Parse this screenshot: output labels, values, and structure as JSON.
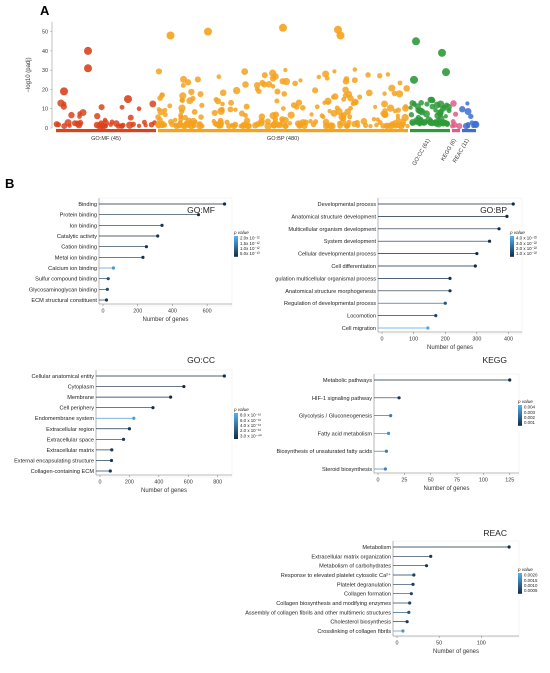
{
  "panels": {
    "a": "A",
    "b": "B"
  },
  "chart_data": [
    {
      "type": "scatter",
      "id": "manhattan",
      "ylabel": "−log10 (padj)",
      "ylim": [
        0,
        55
      ],
      "yticks": [
        "0",
        "10",
        "20",
        "30",
        "40",
        "50"
      ],
      "sources": [
        {
          "name": "GO:MF (45)",
          "color": "#d9431c",
          "count": 45
        },
        {
          "name": "GO:BP (480)",
          "color": "#f5a21e",
          "count": 480
        },
        {
          "name": "GO:CC (61)",
          "color": "#2e9a3a",
          "count": 61
        },
        {
          "name": "KEGG (6)",
          "color": "#e05a8a",
          "count": 6
        },
        {
          "name": "REAC (11)",
          "color": "#3c6fcf",
          "count": 11
        }
      ],
      "highlights": [
        {
          "source": 0,
          "pos": 0.08,
          "y": 19
        },
        {
          "source": 0,
          "pos": 0.32,
          "y": 40
        },
        {
          "source": 0,
          "pos": 0.32,
          "y": 31
        },
        {
          "source": 0,
          "pos": 0.72,
          "y": 15
        },
        {
          "source": 1,
          "pos": 0.05,
          "y": 48
        },
        {
          "source": 1,
          "pos": 0.2,
          "y": 50
        },
        {
          "source": 1,
          "pos": 0.5,
          "y": 52
        },
        {
          "source": 1,
          "pos": 0.72,
          "y": 51
        },
        {
          "source": 1,
          "pos": 0.73,
          "y": 48
        },
        {
          "source": 2,
          "pos": 0.15,
          "y": 45
        },
        {
          "source": 2,
          "pos": 0.8,
          "y": 39
        },
        {
          "source": 2,
          "pos": 0.1,
          "y": 25
        },
        {
          "source": 2,
          "pos": 0.9,
          "y": 29
        }
      ]
    },
    {
      "type": "lollipop",
      "id": "gomf",
      "title": "GO:MF",
      "xlabel": "Number of genes",
      "xlim": [
        0,
        720
      ],
      "xticks": [
        0,
        200,
        400,
        600
      ],
      "legend": {
        "title": "p value",
        "labels": [
          "2.0x 10⁻¹²",
          "1.5x 10⁻¹²",
          "1.0x 10⁻¹²",
          "5.0x 10⁻¹³"
        ]
      },
      "categories": [
        "Binding",
        "Protein binding",
        "Ion binding",
        "Catalytic activity",
        "Cation binding",
        "Metal ion binding",
        "Calcium ion binding",
        "Sulfur compound binding",
        "Glycosaminoglycan binding",
        "ECM structural constituent"
      ],
      "values": [
        700,
        550,
        340,
        315,
        250,
        230,
        60,
        30,
        25,
        20
      ],
      "shade": [
        0,
        0.05,
        0.05,
        0.05,
        0.05,
        0.05,
        0.8,
        0.25,
        0.25,
        0.1
      ]
    },
    {
      "type": "lollipop",
      "id": "gobp",
      "title": "GO:BP",
      "xlabel": "Number of genes",
      "xlim": [
        0,
        430
      ],
      "xticks": [
        0,
        100,
        200,
        300,
        400
      ],
      "legend": {
        "title": "p value",
        "labels": [
          "4.0 x 10⁻²²",
          "3.0 x 10⁻²²",
          "2.0 x 10⁻²²",
          "1.0 x 10⁻²²"
        ]
      },
      "categories": [
        "Developmental process",
        "Anatomical structure development",
        "Multicellular organism development",
        "System development",
        "Cellular developmental process",
        "Cell differentiation",
        "gulation multicellular organismal process",
        "Anatomical structure morphogenesis",
        "Regulation of developmental process",
        "Locomotion",
        "Cell migration"
      ],
      "values": [
        415,
        395,
        370,
        340,
        300,
        295,
        215,
        215,
        200,
        170,
        145
      ],
      "shade": [
        0,
        0,
        0,
        0,
        0,
        0,
        0.05,
        0.05,
        0.3,
        0.2,
        0.9
      ]
    },
    {
      "type": "lollipop",
      "id": "gocc",
      "title": "GO:CC",
      "xlabel": "Number of genes",
      "xlim": [
        0,
        870
      ],
      "xticks": [
        0,
        200,
        400,
        600,
        800
      ],
      "legend": {
        "title": "p value",
        "labels": [
          "8.0 x 10⁻¹⁶",
          "6.0 x 10⁻¹⁶",
          "4.0 x 10⁻¹⁶",
          "2.0 x 10⁻¹⁶",
          "3.0 x 10⁻⁴⁰"
        ]
      },
      "categories": [
        "Cellular anatomical entity",
        "Cytoplasm",
        "Membrane",
        "Cell periphery",
        "Endomembrane system",
        "Extracellular region",
        "Extracellular space",
        "Extracellular matrix",
        "External encapsulating structure",
        "Collagen-containing  ECM"
      ],
      "values": [
        845,
        570,
        480,
        360,
        230,
        200,
        160,
        80,
        78,
        70
      ],
      "shade": [
        0,
        0,
        0,
        0,
        0.85,
        0.1,
        0.1,
        0.1,
        0.1,
        0.1
      ]
    },
    {
      "type": "lollipop",
      "id": "kegg",
      "title": "KEGG",
      "xlabel": "Number of genes",
      "xlim": [
        0,
        130
      ],
      "xticks": [
        0,
        25,
        50,
        75,
        100,
        125
      ],
      "legend": {
        "title": "p value",
        "labels": [
          "0.004",
          "0.003",
          "0.002",
          "0.001"
        ]
      },
      "categories": [
        "Metabolic pathways",
        "HIF-1 signaling pathway",
        "Glycolysis / Gluconeogenesis",
        "Fatty acid metabolism",
        "Biosynthesis of unsaturated fatty acids",
        "Steroid biosynthesis"
      ],
      "values": [
        125,
        20,
        12,
        10,
        8,
        7
      ],
      "shade": [
        0,
        0.1,
        0.6,
        0.75,
        0.6,
        0.65
      ]
    },
    {
      "type": "lollipop",
      "id": "reac",
      "title": "REAC",
      "xlabel": "Number of genes",
      "xlim": [
        0,
        140
      ],
      "xticks": [
        0,
        50,
        100
      ],
      "legend": {
        "title": "p value",
        "labels": [
          "0.0020",
          "0.0015",
          "0.0010",
          "0.0005"
        ]
      },
      "categories": [
        "Metabolism",
        "Extracellular matrix organization",
        "Metabolism of carbohydrates",
        "Response to elevated platelet cytosolic Ca²⁺",
        "Platelet degranulation",
        "Collagen formation",
        "Collagen biosynthesis and modifying enzymes",
        "Assembly of collagen fibrils and other multimeric structures",
        "Cholesterol biosynthesis",
        "Crosslinking of collagen fibrils"
      ],
      "values": [
        133,
        40,
        35,
        20,
        19,
        17,
        15,
        14,
        12,
        7
      ],
      "shade": [
        0,
        0.1,
        0.1,
        0.15,
        0.15,
        0.2,
        0.2,
        0.3,
        0.1,
        0.8
      ]
    }
  ]
}
